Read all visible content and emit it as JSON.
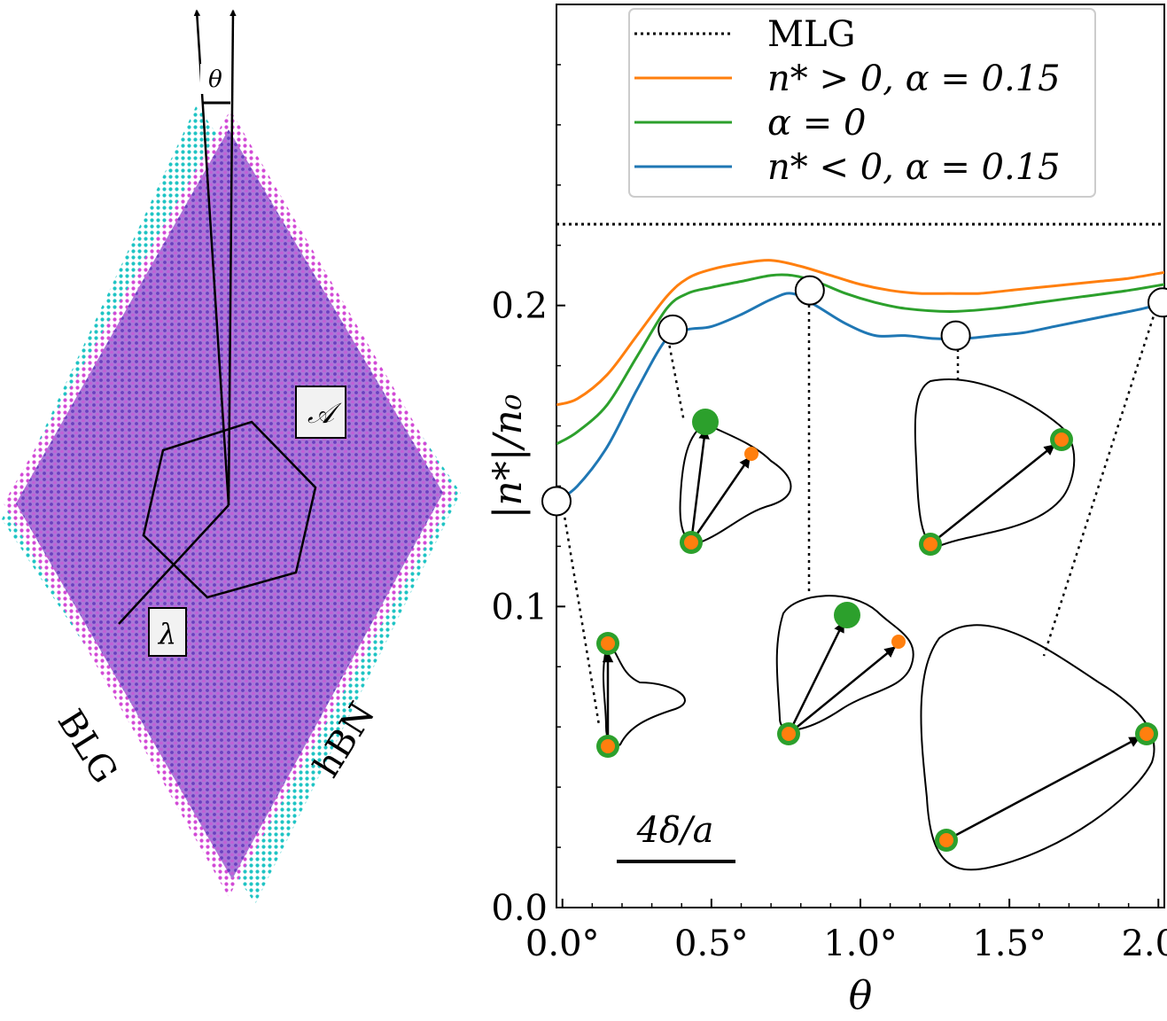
{
  "left_panel": {
    "materials": [
      {
        "label": "BLG",
        "color": "#d24ad6"
      },
      {
        "label": "hBN",
        "color": "#1fc4c4"
      }
    ],
    "annotations": {
      "angle": "θ",
      "area": "𝒜",
      "wavelength": "λ"
    }
  },
  "chart_data": {
    "type": "line",
    "xlabel": "θ",
    "ylabel": "|n*|/n₀",
    "x_unit": "degrees",
    "xlim": [
      -0.02,
      2.02
    ],
    "ylim": [
      0.0,
      0.3
    ],
    "xticks": [
      0.0,
      0.5,
      1.0,
      1.5,
      2.0
    ],
    "xtick_labels": [
      "0.0°",
      "0.5°",
      "1.0°",
      "1.5°",
      "2.0°"
    ],
    "yticks": [
      0.0,
      0.1,
      0.2
    ],
    "ytick_labels": [
      "0.0",
      "0.1",
      "0.2"
    ],
    "legend_position": "top-right",
    "mlg_value": 0.227,
    "series": [
      {
        "name": "MLG",
        "color": "#000000",
        "style": "dotted",
        "constant": 0.227
      },
      {
        "name": "n* > 0, α = 0.15",
        "color": "#ff7f0e",
        "style": "solid",
        "x": [
          -0.02,
          0.05,
          0.15,
          0.25,
          0.35,
          0.42,
          0.5,
          0.6,
          0.7,
          0.8,
          0.9,
          1.0,
          1.1,
          1.2,
          1.3,
          1.4,
          1.5,
          1.6,
          1.7,
          1.8,
          1.9,
          2.02
        ],
        "y": [
          0.167,
          0.169,
          0.177,
          0.19,
          0.203,
          0.209,
          0.212,
          0.214,
          0.215,
          0.213,
          0.21,
          0.207,
          0.205,
          0.204,
          0.204,
          0.204,
          0.205,
          0.206,
          0.207,
          0.208,
          0.209,
          0.211
        ]
      },
      {
        "name": "α = 0",
        "color": "#2ca02c",
        "style": "solid",
        "x": [
          -0.02,
          0.05,
          0.15,
          0.25,
          0.35,
          0.42,
          0.5,
          0.6,
          0.7,
          0.77,
          0.85,
          0.95,
          1.05,
          1.15,
          1.3,
          1.45,
          1.6,
          1.75,
          1.9,
          2.02
        ],
        "y": [
          0.154,
          0.158,
          0.167,
          0.183,
          0.199,
          0.204,
          0.206,
          0.208,
          0.21,
          0.21,
          0.208,
          0.204,
          0.201,
          0.199,
          0.198,
          0.199,
          0.201,
          0.203,
          0.205,
          0.207
        ]
      },
      {
        "name": "n* < 0, α = 0.15",
        "color": "#1f77b4",
        "style": "solid",
        "x": [
          -0.02,
          0.05,
          0.15,
          0.25,
          0.35,
          0.42,
          0.5,
          0.6,
          0.7,
          0.77,
          0.85,
          0.95,
          1.05,
          1.15,
          1.25,
          1.35,
          1.45,
          1.55,
          1.65,
          1.75,
          1.85,
          1.95,
          2.02
        ],
        "y": [
          0.135,
          0.14,
          0.153,
          0.172,
          0.189,
          0.192,
          0.193,
          0.197,
          0.202,
          0.204,
          0.2,
          0.194,
          0.19,
          0.19,
          0.189,
          0.189,
          0.19,
          0.191,
          0.193,
          0.195,
          0.197,
          0.199,
          0.201
        ]
      }
    ],
    "markers": [
      {
        "x": -0.02,
        "y": 0.135
      },
      {
        "x": 0.37,
        "y": 0.192
      },
      {
        "x": 0.83,
        "y": 0.205
      },
      {
        "x": 1.32,
        "y": 0.19
      },
      {
        "x": 2.02,
        "y": 0.201
      }
    ],
    "scale_bar_label": "4δ/a"
  }
}
